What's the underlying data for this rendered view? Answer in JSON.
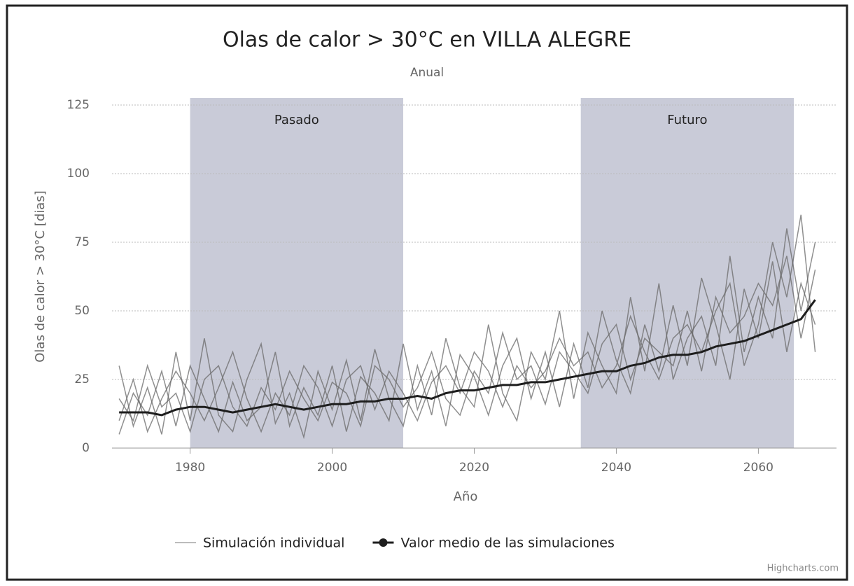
{
  "chart_data": {
    "type": "line",
    "title": "Olas de calor > 30°C en VILLA ALEGRE",
    "subtitle": "Anual",
    "x_label": "Año",
    "y_label": "Olas de calor > 30°C [dias]",
    "credits": "Highcharts.com",
    "xlim": [
      1969,
      2071
    ],
    "xticks": [
      1980,
      2000,
      2020,
      2040,
      2060
    ],
    "ylim": [
      0,
      125
    ],
    "yticks": [
      0,
      25,
      50,
      75,
      100,
      125
    ],
    "grid": true,
    "plot_bands": [
      {
        "from": 1980,
        "to": 2010,
        "label": "Pasado",
        "color": "#c9cbd8"
      },
      {
        "from": 2035,
        "to": 2065,
        "label": "Futuro",
        "color": "#c9cbd8"
      }
    ],
    "x": [
      1970,
      1972,
      1974,
      1976,
      1978,
      1980,
      1982,
      1984,
      1986,
      1988,
      1990,
      1992,
      1994,
      1996,
      1998,
      2000,
      2002,
      2004,
      2006,
      2008,
      2010,
      2012,
      2014,
      2016,
      2018,
      2020,
      2022,
      2024,
      2026,
      2028,
      2030,
      2032,
      2034,
      2036,
      2038,
      2040,
      2042,
      2044,
      2046,
      2048,
      2050,
      2052,
      2054,
      2056,
      2058,
      2060,
      2062,
      2064,
      2066,
      2068
    ],
    "series": [
      {
        "name": "Simulación individual",
        "color": "#6a6a6a",
        "values": [
          30,
          8,
          22,
          5,
          35,
          10,
          40,
          12,
          6,
          25,
          38,
          9,
          20,
          4,
          28,
          14,
          32,
          10,
          36,
          18,
          8,
          30,
          12,
          40,
          22,
          15,
          45,
          20,
          10,
          35,
          25,
          50,
          18,
          42,
          30,
          20,
          55,
          28,
          60,
          25,
          40,
          48,
          30,
          70,
          35,
          55,
          40,
          80,
          50,
          75
        ]
      },
      {
        "color": "#6a6a6a",
        "values": [
          5,
          20,
          12,
          28,
          8,
          30,
          18,
          6,
          24,
          10,
          15,
          35,
          8,
          22,
          12,
          30,
          6,
          26,
          20,
          10,
          38,
          14,
          28,
          8,
          34,
          26,
          12,
          30,
          40,
          18,
          35,
          15,
          38,
          22,
          50,
          32,
          20,
          45,
          28,
          52,
          30,
          62,
          45,
          25,
          58,
          40,
          68,
          35,
          60,
          45
        ]
      },
      {
        "color": "#6a6a6a",
        "values": [
          18,
          10,
          30,
          15,
          20,
          6,
          25,
          30,
          15,
          8,
          22,
          14,
          28,
          18,
          10,
          24,
          20,
          8,
          30,
          25,
          15,
          22,
          35,
          18,
          12,
          28,
          20,
          42,
          25,
          30,
          16,
          35,
          28,
          20,
          38,
          45,
          25,
          40,
          35,
          30,
          50,
          28,
          55,
          42,
          48,
          60,
          52,
          70,
          40,
          65
        ]
      },
      {
        "color": "#6a6a6a",
        "values": [
          10,
          25,
          6,
          18,
          28,
          20,
          10,
          22,
          35,
          18,
          6,
          20,
          12,
          30,
          22,
          8,
          25,
          30,
          14,
          28,
          20,
          10,
          24,
          30,
          20,
          35,
          28,
          15,
          30,
          22,
          28,
          40,
          30,
          35,
          22,
          30,
          48,
          35,
          25,
          40,
          45,
          35,
          50,
          60,
          30,
          45,
          75,
          55,
          85,
          35
        ]
      },
      {
        "name": "Valor medio de las simulaciones",
        "color": "#1e1e1e",
        "marker": true,
        "values": [
          13,
          13,
          13,
          12,
          14,
          15,
          15,
          14,
          13,
          14,
          15,
          16,
          15,
          14,
          15,
          16,
          16,
          17,
          17,
          18,
          18,
          19,
          18,
          20,
          21,
          21,
          22,
          23,
          23,
          24,
          24,
          25,
          26,
          27,
          28,
          28,
          30,
          31,
          33,
          34,
          34,
          35,
          37,
          38,
          39,
          41,
          43,
          45,
          47,
          54
        ]
      }
    ]
  }
}
